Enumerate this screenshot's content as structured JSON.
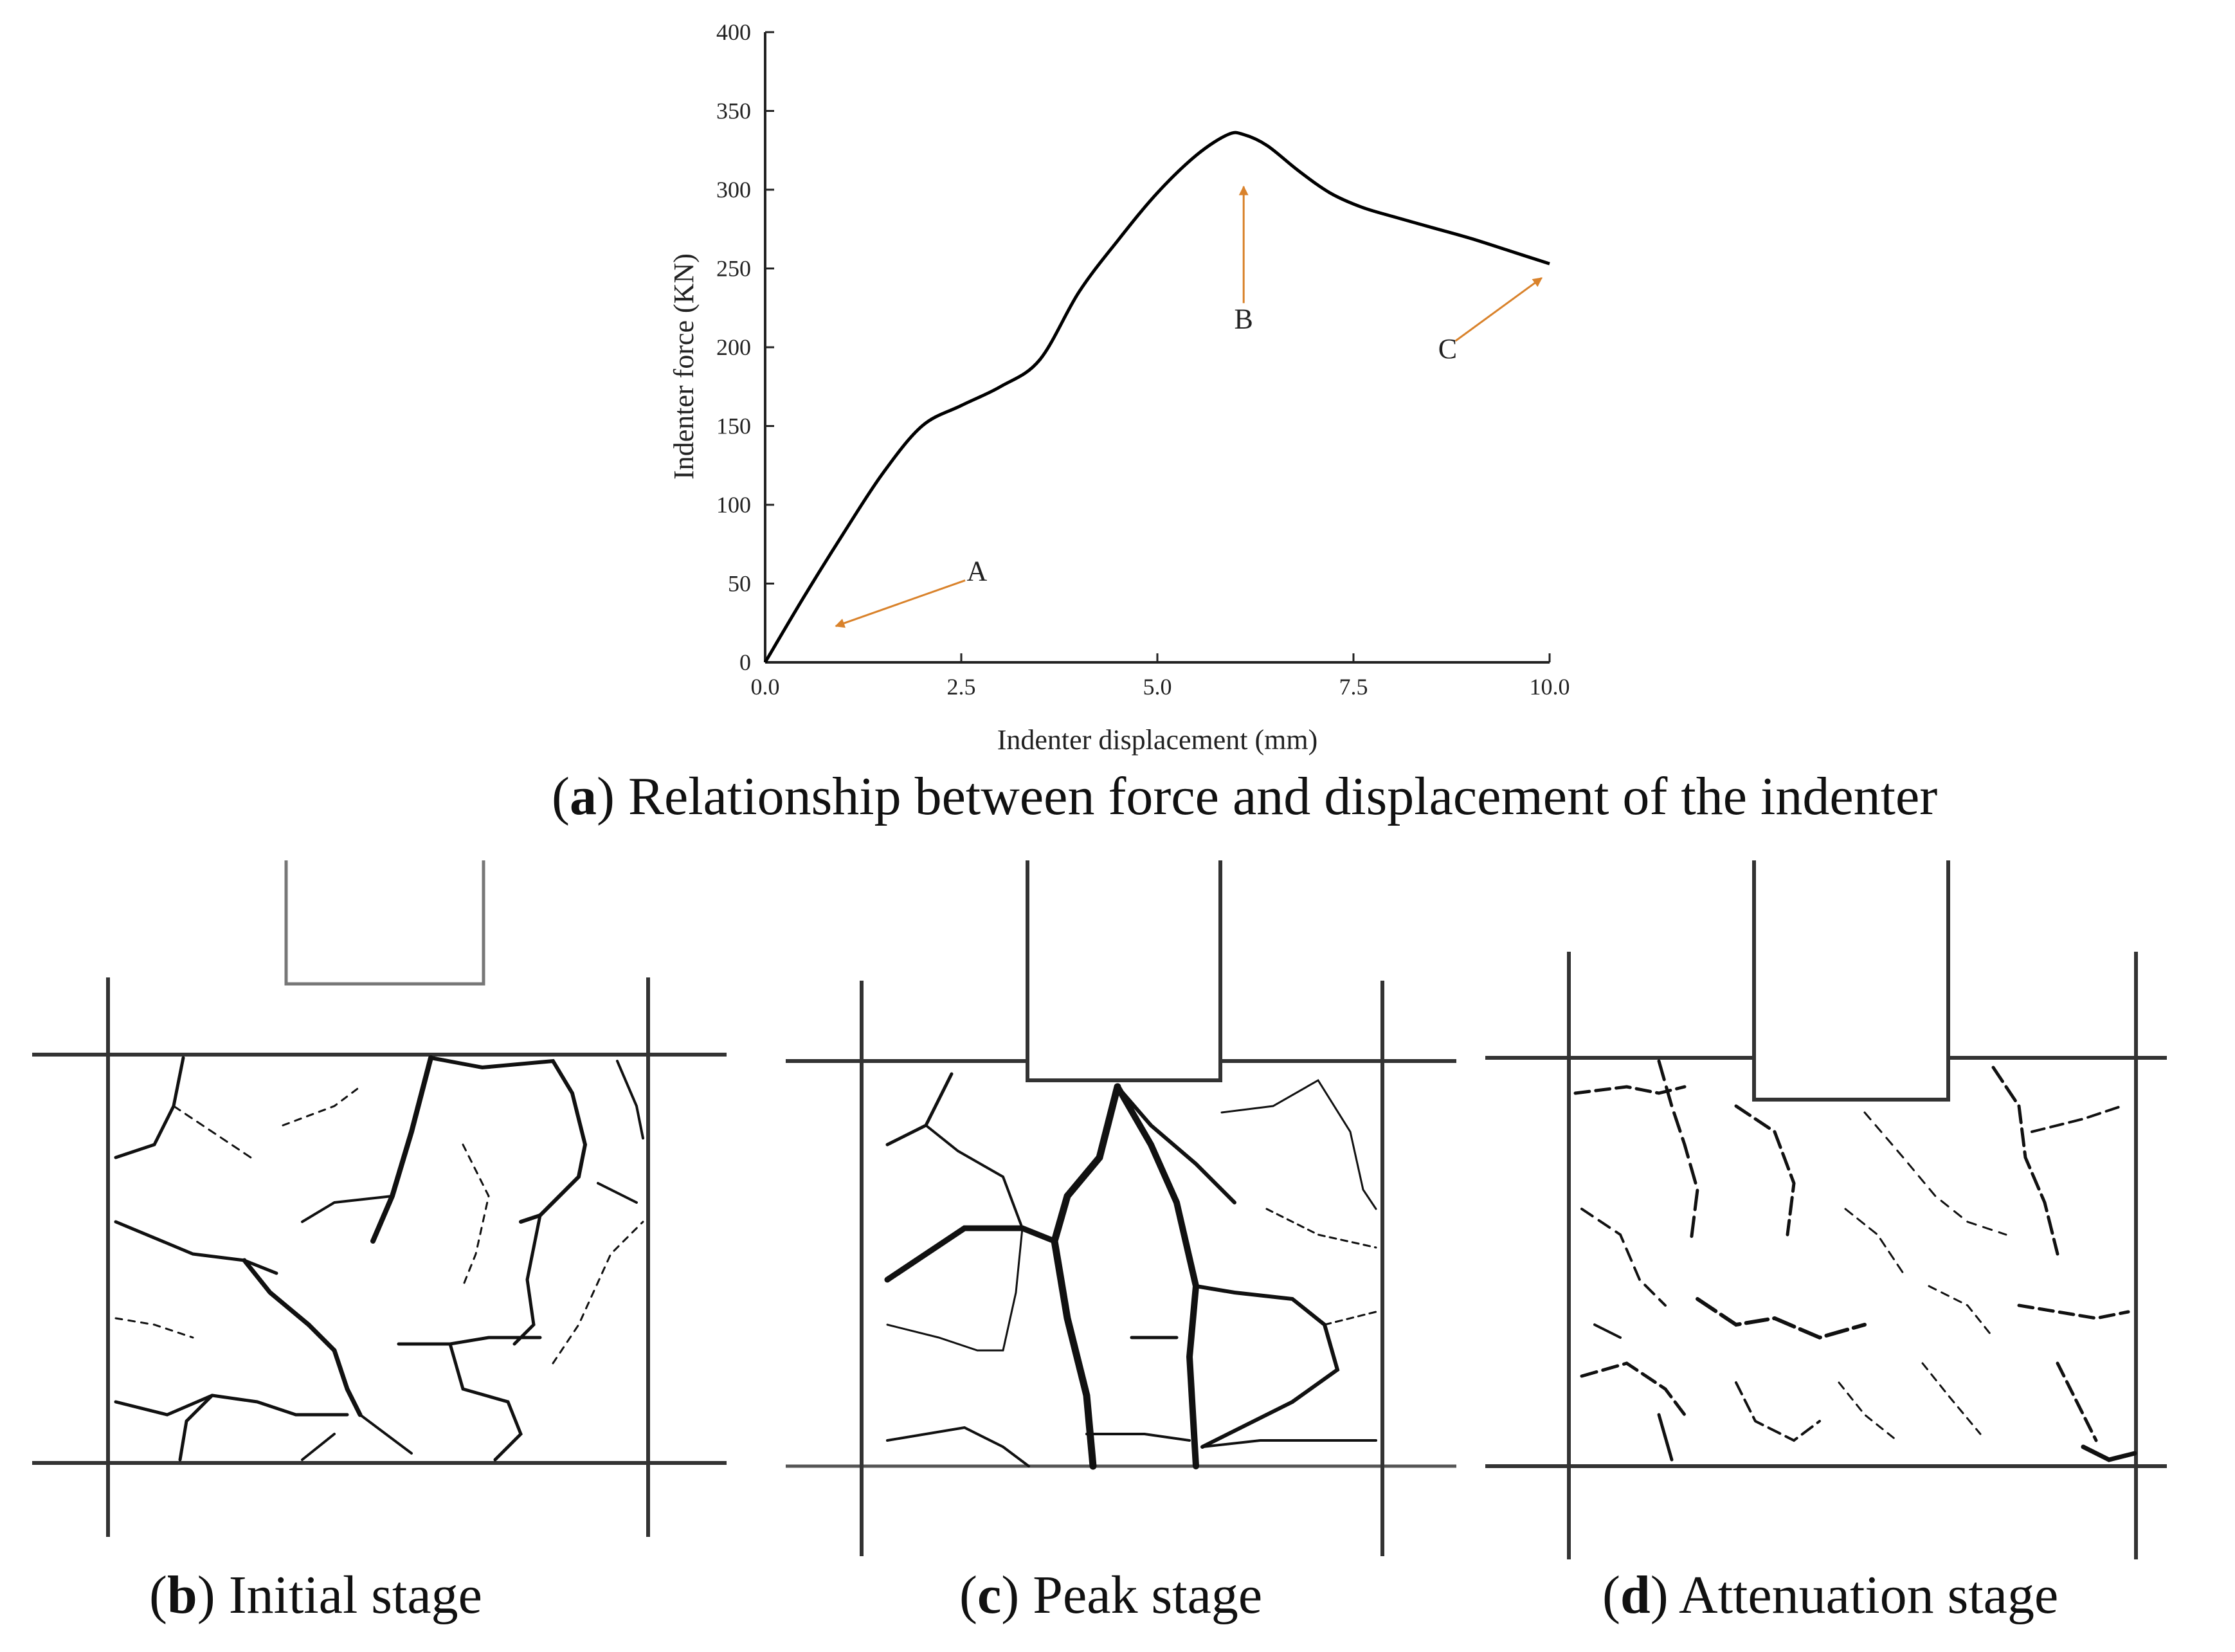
{
  "figure": {
    "panel_a": {
      "letter": "a",
      "caption": "Relationship between force and displacement of the indenter",
      "chart_data": {
        "type": "line",
        "title": "",
        "xlabel": "Indenter displacement (mm)",
        "ylabel": "Indenter force (KN)",
        "xlim": [
          0,
          10
        ],
        "ylim": [
          0,
          400
        ],
        "xticks": [
          "0.0",
          "2.5",
          "5.0",
          "7.5",
          "10.0"
        ],
        "yticks": [
          "0",
          "50",
          "100",
          "150",
          "200",
          "250",
          "300",
          "350",
          "400"
        ],
        "grid": false,
        "series": [
          {
            "x": [
              0,
              0.5,
              1.0,
              1.5,
              2.0,
              2.5,
              3.0,
              3.5,
              4.0,
              4.5,
              5.0,
              5.5,
              5.9,
              6.1,
              6.4,
              6.8,
              7.2,
              7.6,
              8.0,
              8.5,
              9.0,
              9.5,
              10.0
            ],
            "y": [
              0,
              42,
              82,
              120,
              150,
              163,
              175,
              192,
              235,
              268,
              298,
              322,
              335,
              335,
              328,
              312,
              298,
              289,
              283,
              276,
              269,
              261,
              253
            ]
          }
        ],
        "annotations": [
          {
            "label": "A",
            "text_x": 2.7,
            "text_y": 52,
            "from": [
              2.55,
              52
            ],
            "to": [
              0.9,
              23
            ]
          },
          {
            "label": "B",
            "text_x": 6.1,
            "text_y": 212,
            "from": [
              6.1,
              228
            ],
            "to": [
              6.1,
              302
            ]
          },
          {
            "label": "C",
            "text_x": 8.7,
            "text_y": 193,
            "from": [
              8.8,
              204
            ],
            "to": [
              9.9,
              244
            ]
          }
        ],
        "arrow_color": "#d9822b",
        "line_color": "#000000"
      }
    },
    "panel_b": {
      "letter": "b",
      "caption": "Initial stage"
    },
    "panel_c": {
      "letter": "c",
      "caption": "Peak stage"
    },
    "panel_d": {
      "letter": "d",
      "caption": "Attenuation stage"
    }
  }
}
